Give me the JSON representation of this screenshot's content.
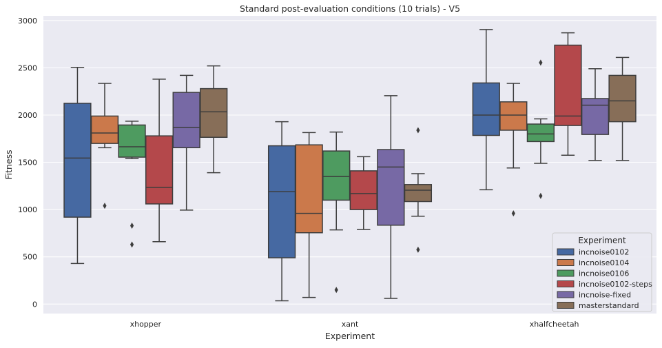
{
  "chart_data": {
    "type": "boxplot",
    "title": "Standard post-evaluation conditions (10 trials) - V5",
    "xlabel": "Experiment",
    "ylabel": "Fitness",
    "ylim": [
      -100,
      3050
    ],
    "yticks": [
      0,
      500,
      1000,
      1500,
      2000,
      2500,
      3000
    ],
    "grid": true,
    "legend_placement": "bottom-right",
    "legend_title": "Experiment",
    "categories": [
      "xhopper",
      "xant",
      "xhalfcheetah"
    ],
    "series": [
      {
        "name": "incnoise0102",
        "color": "#4c72b0",
        "boxes": [
          {
            "whisker_low": 430,
            "q1": 920,
            "median": 1545,
            "q3": 2125,
            "whisker_high": 2505,
            "outliers": []
          },
          {
            "whisker_low": 35,
            "q1": 490,
            "median": 1190,
            "q3": 1675,
            "whisker_high": 1930,
            "outliers": []
          },
          {
            "whisker_low": 1210,
            "q1": 1785,
            "median": 2000,
            "q3": 2340,
            "whisker_high": 2905,
            "outliers": []
          }
        ]
      },
      {
        "name": "incnoise0104",
        "color": "#dd8452",
        "boxes": [
          {
            "whisker_low": 1655,
            "q1": 1700,
            "median": 1810,
            "q3": 1990,
            "whisker_high": 2335,
            "outliers": [
              1040
            ]
          },
          {
            "whisker_low": 70,
            "q1": 755,
            "median": 960,
            "q3": 1685,
            "whisker_high": 1815,
            "outliers": []
          },
          {
            "whisker_low": 1440,
            "q1": 1840,
            "median": 2000,
            "q3": 2140,
            "whisker_high": 2335,
            "outliers": [
              960
            ]
          }
        ]
      },
      {
        "name": "incnoise0106",
        "color": "#55a868",
        "boxes": [
          {
            "whisker_low": 1540,
            "q1": 1555,
            "median": 1665,
            "q3": 1895,
            "whisker_high": 1935,
            "outliers": [
              830,
              630
            ]
          },
          {
            "whisker_low": 785,
            "q1": 1100,
            "median": 1350,
            "q3": 1620,
            "whisker_high": 1820,
            "outliers": [
              150
            ]
          },
          {
            "whisker_low": 1490,
            "q1": 1720,
            "median": 1800,
            "q3": 1905,
            "whisker_high": 1960,
            "outliers": [
              2555,
              1145
            ]
          }
        ]
      },
      {
        "name": "incnoise0102-steps",
        "color": "#c44e52",
        "boxes": [
          {
            "whisker_low": 660,
            "q1": 1060,
            "median": 1235,
            "q3": 1780,
            "whisker_high": 2380,
            "outliers": []
          },
          {
            "whisker_low": 790,
            "q1": 1000,
            "median": 1170,
            "q3": 1410,
            "whisker_high": 1560,
            "outliers": []
          },
          {
            "whisker_low": 1575,
            "q1": 1890,
            "median": 1990,
            "q3": 2740,
            "whisker_high": 2870,
            "outliers": []
          }
        ]
      },
      {
        "name": "incnoise-fixed",
        "color": "#8172b3",
        "boxes": [
          {
            "whisker_low": 995,
            "q1": 1655,
            "median": 1870,
            "q3": 2240,
            "whisker_high": 2420,
            "outliers": []
          },
          {
            "whisker_low": 60,
            "q1": 835,
            "median": 1450,
            "q3": 1635,
            "whisker_high": 2205,
            "outliers": []
          },
          {
            "whisker_low": 1520,
            "q1": 1795,
            "median": 2105,
            "q3": 2175,
            "whisker_high": 2490,
            "outliers": []
          }
        ]
      },
      {
        "name": "masterstandard",
        "color": "#937860",
        "boxes": [
          {
            "whisker_low": 1390,
            "q1": 1765,
            "median": 2035,
            "q3": 2280,
            "whisker_high": 2520,
            "outliers": []
          },
          {
            "whisker_low": 930,
            "q1": 1085,
            "median": 1205,
            "q3": 1265,
            "whisker_high": 1380,
            "outliers": [
              1840,
              575
            ]
          },
          {
            "whisker_low": 1520,
            "q1": 1930,
            "median": 2150,
            "q3": 2420,
            "whisker_high": 2610,
            "outliers": []
          }
        ]
      }
    ]
  }
}
